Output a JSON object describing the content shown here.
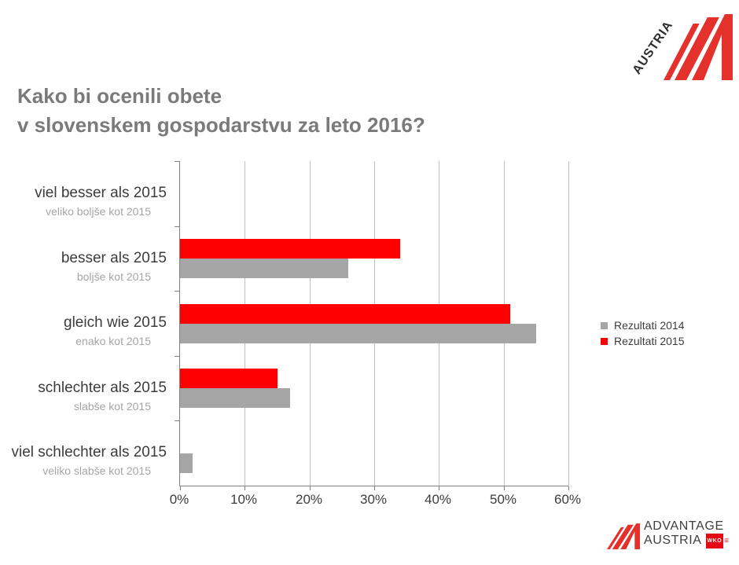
{
  "title": {
    "line1": "Kako bi ocenili obete",
    "line2": "v slovenskem gospodarstvu za leto 2016?"
  },
  "brand": {
    "red": "#e5312b",
    "badge_red": "#e30613",
    "top_logo_text": "AUSTRIA"
  },
  "chart_data": {
    "type": "bar",
    "orientation": "horizontal",
    "title": "",
    "categories": [
      "viel besser als 2015",
      "besser als 2015",
      "gleich wie 2015",
      "schlechter als 2015",
      "viel schlechter als 2015"
    ],
    "categories_sub": [
      "veliko boljše kot 2015",
      "boljše kot 2015",
      "enako kot 2015",
      "slabše kot 2015",
      "veliko slabše kot 2015"
    ],
    "series": [
      {
        "name": "Rezultati 2014",
        "color": "#a6a6a6",
        "values": [
          0,
          26,
          55,
          17,
          2
        ]
      },
      {
        "name": "Rezultati 2015",
        "color": "#ff0000",
        "values": [
          0,
          34,
          51,
          15,
          0
        ]
      }
    ],
    "xlim": [
      0,
      60
    ],
    "x_ticks": [
      "0%",
      "10%",
      "20%",
      "30%",
      "40%",
      "50%",
      "60%"
    ],
    "x_tick_values": [
      0,
      10,
      20,
      30,
      40,
      50,
      60
    ],
    "grid": "vertical",
    "legend_position": "right"
  },
  "footer_logo": {
    "line1": "ADVANTAGE",
    "line2": "AUSTRIA",
    "badge": "WKO",
    "badge_flag": "≡"
  }
}
